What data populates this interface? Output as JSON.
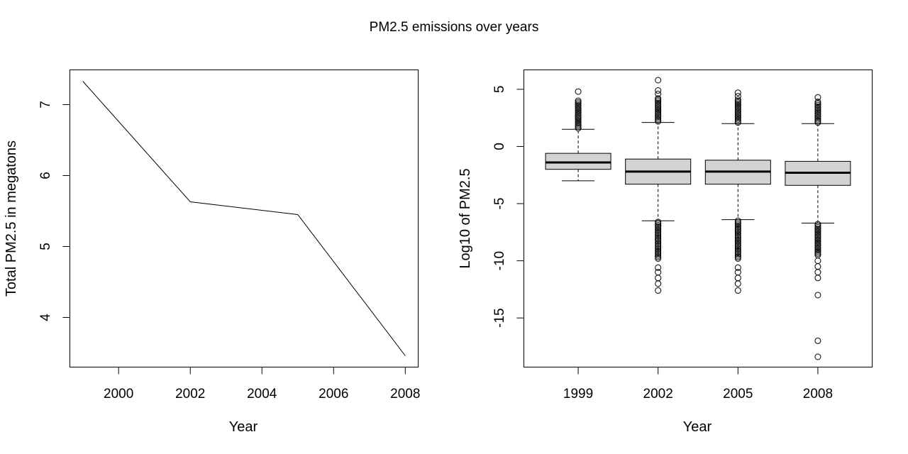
{
  "figure": {
    "title": "PM2.5 emissions over years"
  },
  "chart_data": [
    {
      "type": "line",
      "title": "",
      "xlabel": "Year",
      "ylabel": "Total PM2.5 in megatons",
      "x": [
        1999,
        2002,
        2005,
        2008
      ],
      "y": [
        7.33,
        5.63,
        5.45,
        3.46
      ],
      "xlim": [
        1998.64,
        2008.36
      ],
      "ylim": [
        3.3,
        7.49
      ],
      "xticks": [
        2000,
        2002,
        2004,
        2006,
        2008
      ],
      "yticks": [
        4,
        5,
        6,
        7
      ],
      "xtick_labels": [
        "2000",
        "2002",
        "2004",
        "2006",
        "2008"
      ],
      "ytick_labels": [
        "4",
        "5",
        "6",
        "7"
      ],
      "grid": false,
      "legend": "none"
    },
    {
      "type": "box",
      "title": "",
      "xlabel": "Year",
      "ylabel": "Log10 of PM2.5",
      "categories": [
        "1999",
        "2002",
        "2005",
        "2008"
      ],
      "boxes": [
        {
          "whisker_low": -3.0,
          "q1": -2.0,
          "median": -1.4,
          "q3": -0.6,
          "whisker_high": 1.5,
          "outliers_high": [
            1.6,
            4.0,
            4.8
          ],
          "outliers_low": []
        },
        {
          "whisker_low": -6.5,
          "q1": -3.3,
          "median": -2.2,
          "q3": -1.1,
          "whisker_high": 2.1,
          "outliers_high": [
            2.2,
            4.2,
            4.6,
            4.9,
            5.8
          ],
          "outliers_low": [
            -6.6,
            -9.8,
            -10.6,
            -11.0,
            -11.5,
            -12.0,
            -12.6
          ]
        },
        {
          "whisker_low": -6.4,
          "q1": -3.3,
          "median": -2.2,
          "q3": -1.2,
          "whisker_high": 2.0,
          "outliers_high": [
            2.1,
            4.1,
            4.4,
            4.7
          ],
          "outliers_low": [
            -6.5,
            -9.8,
            -10.6,
            -11.0,
            -11.5,
            -12.0,
            -12.6
          ]
        },
        {
          "whisker_low": -6.7,
          "q1": -3.4,
          "median": -2.3,
          "q3": -1.3,
          "whisker_high": 2.0,
          "outliers_high": [
            2.1,
            3.9,
            4.3
          ],
          "outliers_low": [
            -6.8,
            -9.5,
            -10.0,
            -10.5,
            -11.0,
            -11.5,
            -13.0,
            -17.0,
            -18.4
          ]
        }
      ],
      "ylim": [
        -19.3,
        6.7
      ],
      "yticks": [
        5,
        0,
        -5,
        -10,
        -15
      ],
      "ytick_labels": [
        "5",
        "0",
        "-5",
        "-10",
        "-15"
      ],
      "grid": false,
      "legend": "none"
    }
  ]
}
